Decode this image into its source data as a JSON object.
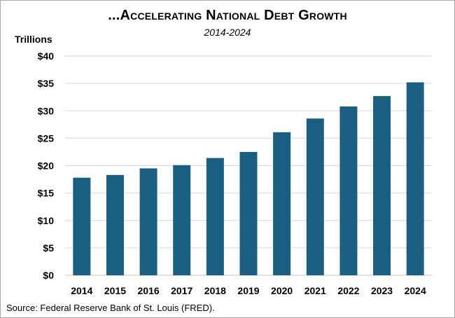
{
  "chart_data": {
    "type": "bar",
    "title": "...Accelerating National Debt Growth",
    "subtitle": "2014-2024",
    "y_unit_label": "Trillions",
    "xlabel": "",
    "ylabel": "",
    "categories": [
      "2014",
      "2015",
      "2016",
      "2017",
      "2018",
      "2019",
      "2020",
      "2021",
      "2022",
      "2023",
      "2024"
    ],
    "values": [
      17.8,
      18.3,
      19.5,
      20.1,
      21.4,
      22.5,
      26.1,
      28.6,
      30.8,
      32.7,
      35.2
    ],
    "ylim": [
      0,
      40
    ],
    "y_ticks": [
      0,
      5,
      10,
      15,
      20,
      25,
      30,
      35,
      40
    ],
    "y_tick_labels": [
      "$0",
      "$5",
      "$10",
      "$15",
      "$20",
      "$25",
      "$30",
      "$35",
      "$40"
    ],
    "grid": true,
    "legend": "none",
    "bar_color": "#1a5f82",
    "grid_color": "#d9d9d9",
    "source": "Source: Federal Reserve Bank of St. Louis (FRED)."
  }
}
